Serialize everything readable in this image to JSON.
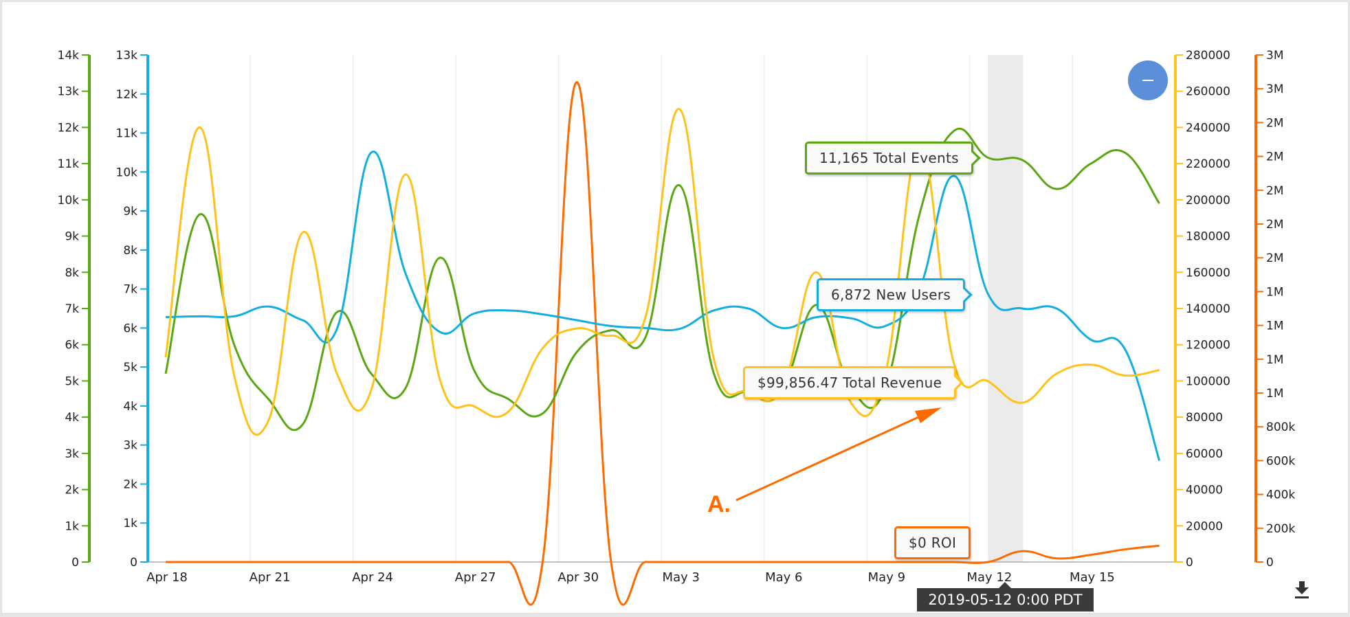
{
  "chart_data": {
    "type": "line",
    "title": "",
    "x": [
      "Apr 18",
      "Apr 19",
      "Apr 20",
      "Apr 21",
      "Apr 22",
      "Apr 23",
      "Apr 24",
      "Apr 25",
      "Apr 26",
      "Apr 27",
      "Apr 28",
      "Apr 29",
      "Apr 30",
      "May 1",
      "May 2",
      "May 3",
      "May 4",
      "May 5",
      "May 6",
      "May 7",
      "May 8",
      "May 9",
      "May 10",
      "May 11",
      "May 12",
      "May 13",
      "May 14",
      "May 15",
      "May 16",
      "May 17"
    ],
    "x_tick_labels": [
      "Apr 18",
      "Apr 21",
      "Apr 24",
      "Apr 27",
      "Apr 30",
      "May 3",
      "May 6",
      "May 9",
      "May 12",
      "May 15"
    ],
    "grid": true,
    "highlighted_x": "May 12",
    "series": [
      {
        "name": "Total Events",
        "color": "#5aa613",
        "axis": "left-outer",
        "values": [
          5200,
          9600,
          6000,
          4500,
          3800,
          6900,
          5200,
          4800,
          8400,
          5300,
          4500,
          4100,
          5800,
          6400,
          6200,
          10400,
          5200,
          4700,
          4800,
          7100,
          4800,
          4800,
          9600,
          11900,
          11165,
          11100,
          10300,
          11000,
          11300,
          9900
        ]
      },
      {
        "name": "New Users",
        "color": "#12aee0",
        "axis": "left-inner",
        "values": [
          6280,
          6300,
          6300,
          6550,
          6200,
          5980,
          10500,
          7400,
          5900,
          6370,
          6450,
          6350,
          6200,
          6050,
          6000,
          5980,
          6450,
          6500,
          6000,
          6280,
          6250,
          6050,
          7000,
          9900,
          6872,
          6500,
          6500,
          5700,
          5450,
          2600
        ]
      },
      {
        "name": "Total Revenue",
        "color": "#fec21a",
        "axis": "right-inner",
        "values": [
          113000,
          240000,
          103000,
          78000,
          182000,
          104000,
          95000,
          214000,
          101000,
          86000,
          83000,
          118000,
          129000,
          125000,
          135000,
          250000,
          112000,
          94000,
          96000,
          160000,
          88000,
          104000,
          230000,
          110000,
          99856.47,
          88000,
          104000,
          109000,
          103000,
          106000
        ]
      },
      {
        "name": "ROI",
        "color": "#ff6a00",
        "axis": "right-outer",
        "values": [
          0,
          0,
          0,
          0,
          0,
          0,
          0,
          0,
          0,
          0,
          0,
          0,
          2650000,
          0,
          0,
          0,
          0,
          0,
          0,
          0,
          0,
          0,
          0,
          0,
          0,
          60000,
          20000,
          40000,
          70000,
          90000
        ]
      }
    ],
    "axes": [
      {
        "id": "left-outer",
        "color": "#5aa613",
        "range": [
          0,
          14000
        ],
        "tick_labels": [
          "0",
          "1k",
          "2k",
          "3k",
          "4k",
          "5k",
          "6k",
          "7k",
          "8k",
          "9k",
          "10k",
          "11k",
          "12k",
          "13k",
          "14k"
        ]
      },
      {
        "id": "left-inner",
        "color": "#12aee0",
        "range": [
          0,
          13000
        ],
        "tick_labels": [
          "0",
          "1k",
          "2k",
          "3k",
          "4k",
          "5k",
          "6k",
          "7k",
          "8k",
          "9k",
          "10k",
          "11k",
          "12k",
          "13k"
        ]
      },
      {
        "id": "right-inner",
        "color": "#fec21a",
        "range": [
          0,
          280000
        ],
        "tick_labels": [
          "0",
          "20000",
          "40000",
          "60000",
          "80000",
          "100000",
          "120000",
          "140000",
          "160000",
          "180000",
          "200000",
          "220000",
          "240000",
          "260000",
          "280000"
        ]
      },
      {
        "id": "right-outer",
        "color": "#ff6a00",
        "range": [
          0,
          2800000
        ],
        "tick_labels": [
          "0",
          "200k",
          "400k",
          "600k",
          "800k",
          "1M",
          "1M",
          "1M",
          "1M",
          "2M",
          "2M",
          "2M",
          "2M",
          "2M",
          "3M",
          "3M"
        ]
      }
    ],
    "annotations": [
      {
        "text": "A.",
        "color": "#ff6a00",
        "type": "arrow",
        "points_to": "Total Revenue callout"
      }
    ]
  },
  "tooltip": {
    "date": "2019-05-12 0:00 PDT",
    "callouts": [
      {
        "series": "Total Events",
        "text": "11,165 Total Events",
        "color": "#5aa613"
      },
      {
        "series": "New Users",
        "text": "6,872 New Users",
        "color": "#12aee0"
      },
      {
        "series": "Total Revenue",
        "text": "$99,856.47 Total Revenue",
        "color": "#fec21a"
      },
      {
        "series": "ROI",
        "text": "$0 ROI",
        "color": "#ff6a00"
      }
    ]
  },
  "controls": {
    "zoom_out_icon": "minus-icon",
    "download_icon": "download-icon"
  }
}
